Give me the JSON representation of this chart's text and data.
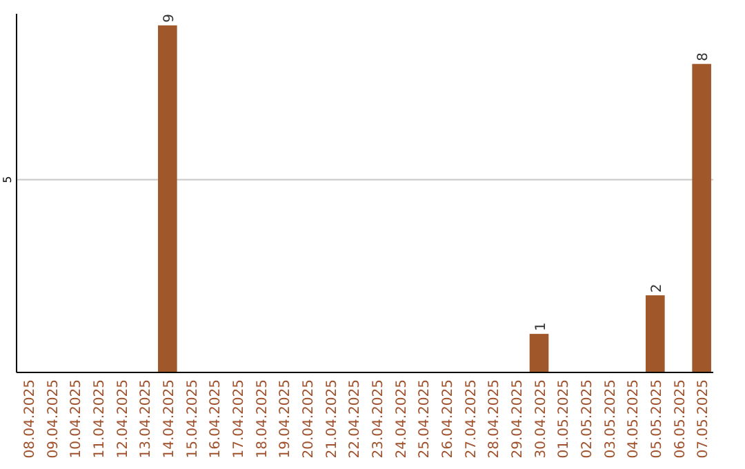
{
  "chart_data": {
    "type": "bar",
    "categories": [
      "08.04.2025",
      "09.04.2025",
      "10.04.2025",
      "11.04.2025",
      "12.04.2025",
      "13.04.2025",
      "14.04.2025",
      "15.04.2025",
      "16.04.2025",
      "17.04.2025",
      "18.04.2025",
      "19.04.2025",
      "20.04.2025",
      "21.04.2025",
      "22.04.2025",
      "23.04.2025",
      "24.04.2025",
      "25.04.2025",
      "26.04.2025",
      "27.04.2025",
      "28.04.2025",
      "29.04.2025",
      "30.04.2025",
      "01.05.2025",
      "02.05.2025",
      "03.05.2025",
      "04.05.2025",
      "05.05.2025",
      "06.05.2025",
      "07.05.2025"
    ],
    "values": [
      0,
      0,
      0,
      0,
      0,
      0,
      9,
      0,
      0,
      0,
      0,
      0,
      0,
      0,
      0,
      0,
      0,
      0,
      0,
      0,
      0,
      0,
      1,
      0,
      0,
      0,
      0,
      2,
      0,
      8
    ],
    "value_labels": [
      null,
      null,
      null,
      null,
      null,
      null,
      "9",
      null,
      null,
      null,
      null,
      null,
      null,
      null,
      null,
      null,
      null,
      null,
      null,
      null,
      null,
      null,
      "1",
      null,
      null,
      null,
      null,
      "2",
      null,
      "8"
    ],
    "color": "#a0582a",
    "ylim": [
      0,
      9.3
    ],
    "yticks": [
      {
        "value": 0,
        "label": null
      },
      5
    ],
    "grid": "y"
  }
}
